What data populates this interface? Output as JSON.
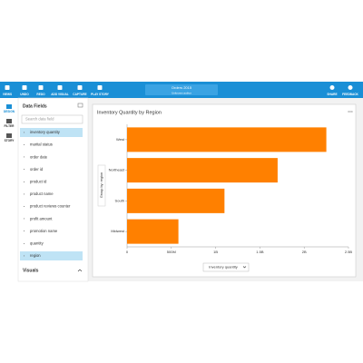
{
  "toolbar": {
    "left": [
      "VIEWS",
      "UNDO",
      "REDO",
      "ADD VISUAL",
      "CAPTURE",
      "PLAY STORY"
    ],
    "title": "Orders 2015",
    "subtitle": "Unknown author",
    "right": [
      "SHARE",
      "FEEDBACK"
    ]
  },
  "rail": [
    "DESIGN",
    "FILTER",
    "STORY"
  ],
  "sidebar": {
    "title": "Data Fields",
    "search": "Search data field",
    "fields": [
      {
        "label": "inventory quantity",
        "selected": true
      },
      {
        "label": "marital status",
        "selected": false
      },
      {
        "label": "order date",
        "selected": false
      },
      {
        "label": "order id",
        "selected": false
      },
      {
        "label": "product id",
        "selected": false
      },
      {
        "label": "product name",
        "selected": false
      },
      {
        "label": "product reviews counter",
        "selected": false
      },
      {
        "label": "profit amount",
        "selected": false
      },
      {
        "label": "promotion name",
        "selected": false
      },
      {
        "label": "quantity",
        "selected": false
      },
      {
        "label": "region",
        "selected": true
      }
    ],
    "visuals": "Visuals"
  },
  "chart_data": {
    "type": "bar",
    "orientation": "horizontal",
    "title": "Inventory Quantity by Region",
    "categories": [
      "West",
      "Northeast",
      "South",
      "Midwest"
    ],
    "values": [
      2250000000,
      1700000000,
      1100000000,
      580000000
    ],
    "color": "#ff8000",
    "xlim": [
      0,
      2500000000
    ],
    "xticks": [
      0,
      {
        "value": 500000000,
        "label": "500M"
      },
      {
        "value": 1000000000,
        "label": "1B"
      },
      {
        "value": 1500000000,
        "label": "1.5B"
      },
      {
        "value": 2000000000,
        "label": "2B"
      },
      {
        "value": 2500000000,
        "label": "2.5B"
      }
    ],
    "grid": false,
    "x_label": "Inventory quantity",
    "y_label": "Group by: region"
  }
}
